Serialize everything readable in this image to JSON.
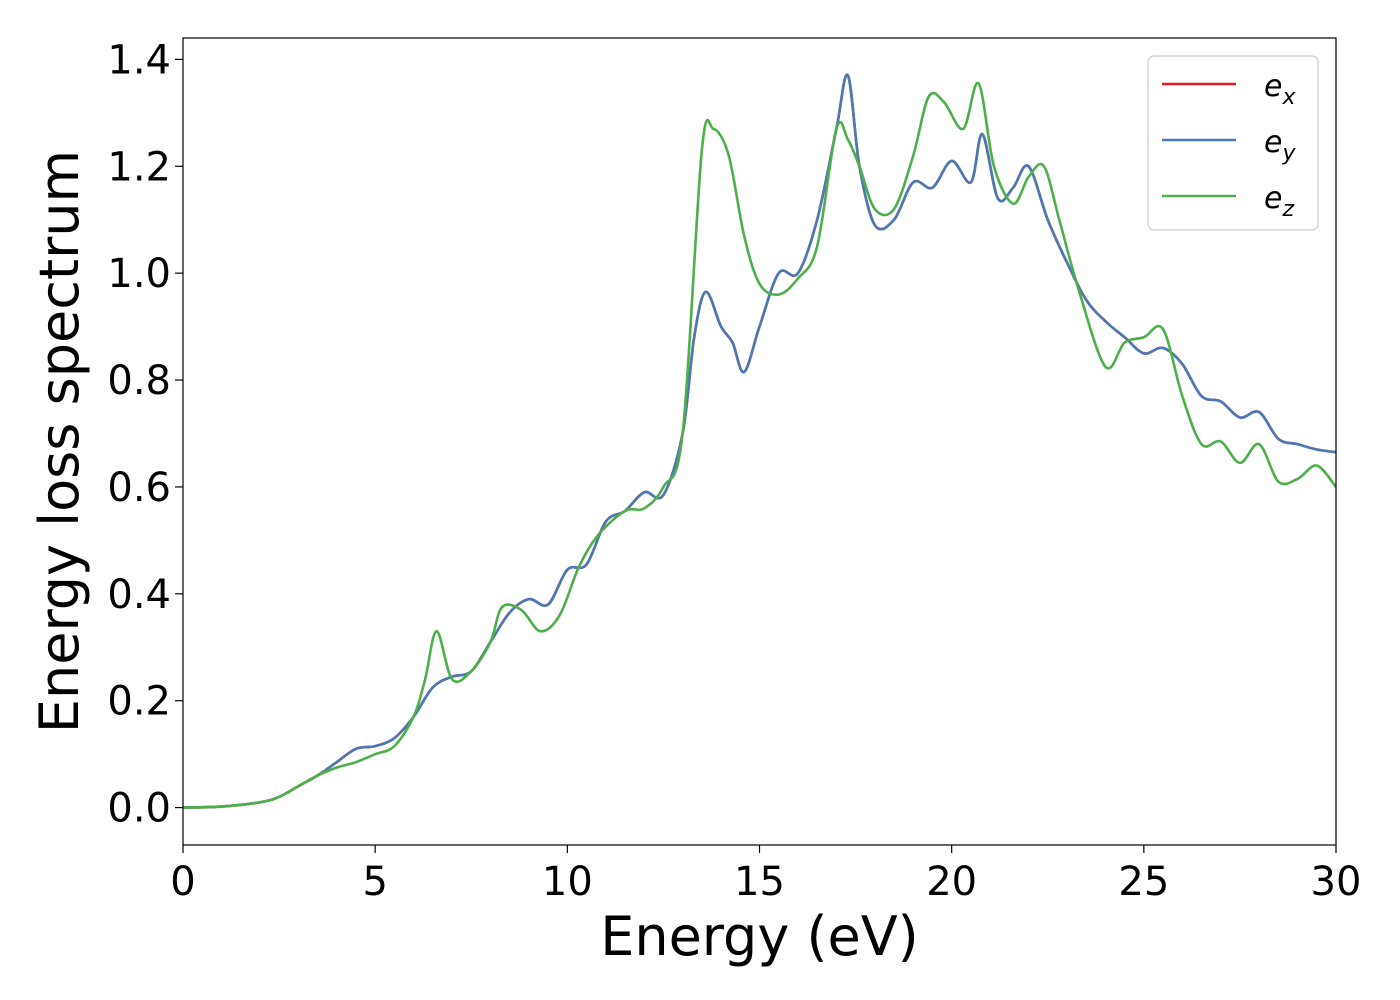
{
  "chart_data": {
    "type": "line",
    "xlabel": "Energy (eV)",
    "ylabel": "Energy loss spectrum",
    "xlim": [
      0,
      30
    ],
    "ylim": [
      -0.07,
      1.44
    ],
    "xticks": [
      0,
      5,
      10,
      15,
      20,
      25,
      30
    ],
    "xtick_labels": [
      "0",
      "5",
      "10",
      "15",
      "20",
      "25",
      "30"
    ],
    "yticks": [
      0.0,
      0.2,
      0.4,
      0.6,
      0.8,
      1.0,
      1.2,
      1.4
    ],
    "ytick_labels": [
      "0.0",
      "0.2",
      "0.4",
      "0.6",
      "0.8",
      "1.0",
      "1.2",
      "1.4"
    ],
    "grid": false,
    "legend_position": "top-right",
    "series": [
      {
        "name": "e_x",
        "legend_base": "e",
        "legend_sub": "x",
        "color": "#e41a1c",
        "x": [
          0,
          1,
          2,
          2.5,
          3,
          3.5,
          4,
          4.5,
          5,
          5.5,
          6,
          6.5,
          7,
          7.5,
          8,
          8.5,
          9,
          9.5,
          10,
          10.5,
          11,
          11.5,
          12,
          12.5,
          13,
          13.3,
          13.6,
          14,
          14.3,
          14.6,
          15,
          15.5,
          16,
          16.5,
          17,
          17.3,
          17.6,
          18,
          18.5,
          19,
          19.5,
          20,
          20.5,
          20.8,
          21.2,
          21.6,
          22,
          22.5,
          23,
          23.5,
          24,
          24.5,
          25,
          25.5,
          26,
          26.5,
          27,
          27.5,
          28,
          28.5,
          29,
          29.5,
          30
        ],
        "y": [
          0.0,
          0.002,
          0.01,
          0.02,
          0.04,
          0.06,
          0.085,
          0.11,
          0.115,
          0.13,
          0.17,
          0.225,
          0.245,
          0.255,
          0.31,
          0.365,
          0.39,
          0.38,
          0.445,
          0.455,
          0.535,
          0.555,
          0.59,
          0.585,
          0.7,
          0.88,
          0.965,
          0.9,
          0.87,
          0.815,
          0.9,
          1.0,
          1.0,
          1.1,
          1.27,
          1.37,
          1.2,
          1.09,
          1.1,
          1.17,
          1.16,
          1.21,
          1.17,
          1.26,
          1.14,
          1.16,
          1.2,
          1.1,
          1.02,
          0.95,
          0.91,
          0.88,
          0.85,
          0.86,
          0.83,
          0.77,
          0.76,
          0.73,
          0.74,
          0.69,
          0.68,
          0.67,
          0.665
        ]
      },
      {
        "name": "e_y",
        "legend_base": "e",
        "legend_sub": "y",
        "color": "#4a7ab5",
        "x": [
          0,
          1,
          2,
          2.5,
          3,
          3.5,
          4,
          4.5,
          5,
          5.5,
          6,
          6.5,
          7,
          7.5,
          8,
          8.5,
          9,
          9.5,
          10,
          10.5,
          11,
          11.5,
          12,
          12.5,
          13,
          13.3,
          13.6,
          14,
          14.3,
          14.6,
          15,
          15.5,
          16,
          16.5,
          17,
          17.3,
          17.6,
          18,
          18.5,
          19,
          19.5,
          20,
          20.5,
          20.8,
          21.2,
          21.6,
          22,
          22.5,
          23,
          23.5,
          24,
          24.5,
          25,
          25.5,
          26,
          26.5,
          27,
          27.5,
          28,
          28.5,
          29,
          29.5,
          30
        ],
        "y": [
          0.0,
          0.002,
          0.01,
          0.02,
          0.04,
          0.06,
          0.085,
          0.11,
          0.115,
          0.13,
          0.17,
          0.225,
          0.245,
          0.255,
          0.31,
          0.365,
          0.39,
          0.38,
          0.445,
          0.455,
          0.535,
          0.555,
          0.59,
          0.585,
          0.7,
          0.88,
          0.965,
          0.9,
          0.87,
          0.815,
          0.9,
          1.0,
          1.0,
          1.1,
          1.27,
          1.37,
          1.2,
          1.09,
          1.1,
          1.17,
          1.16,
          1.21,
          1.17,
          1.26,
          1.14,
          1.16,
          1.2,
          1.1,
          1.02,
          0.95,
          0.91,
          0.88,
          0.85,
          0.86,
          0.83,
          0.77,
          0.76,
          0.73,
          0.74,
          0.69,
          0.68,
          0.67,
          0.665
        ]
      },
      {
        "name": "e_z",
        "legend_base": "e",
        "legend_sub": "z",
        "color": "#4daf4a",
        "x": [
          0,
          1,
          2,
          2.5,
          3,
          3.5,
          4,
          4.5,
          5,
          5.5,
          6,
          6.3,
          6.6,
          7,
          7.5,
          8,
          8.3,
          8.8,
          9.3,
          9.8,
          10.3,
          10.8,
          11.5,
          12,
          12.5,
          13,
          13.5,
          13.8,
          14.2,
          14.6,
          15,
          15.5,
          16,
          16.5,
          17,
          17.3,
          17.6,
          18,
          18.5,
          19,
          19.4,
          19.8,
          20.3,
          20.7,
          21.1,
          21.6,
          22,
          22.4,
          22.8,
          23.3,
          24,
          24.5,
          25,
          25.5,
          26,
          26.5,
          27,
          27.5,
          28,
          28.5,
          29,
          29.5,
          30
        ],
        "y": [
          0.0,
          0.002,
          0.01,
          0.02,
          0.04,
          0.06,
          0.075,
          0.085,
          0.1,
          0.115,
          0.17,
          0.24,
          0.33,
          0.24,
          0.255,
          0.31,
          0.375,
          0.37,
          0.33,
          0.36,
          0.45,
          0.51,
          0.555,
          0.56,
          0.6,
          0.7,
          1.23,
          1.27,
          1.22,
          1.07,
          0.98,
          0.96,
          0.99,
          1.05,
          1.27,
          1.25,
          1.2,
          1.12,
          1.12,
          1.22,
          1.33,
          1.32,
          1.27,
          1.355,
          1.2,
          1.13,
          1.18,
          1.2,
          1.1,
          0.97,
          0.825,
          0.87,
          0.88,
          0.895,
          0.77,
          0.68,
          0.685,
          0.645,
          0.68,
          0.61,
          0.615,
          0.64,
          0.6
        ]
      }
    ]
  }
}
